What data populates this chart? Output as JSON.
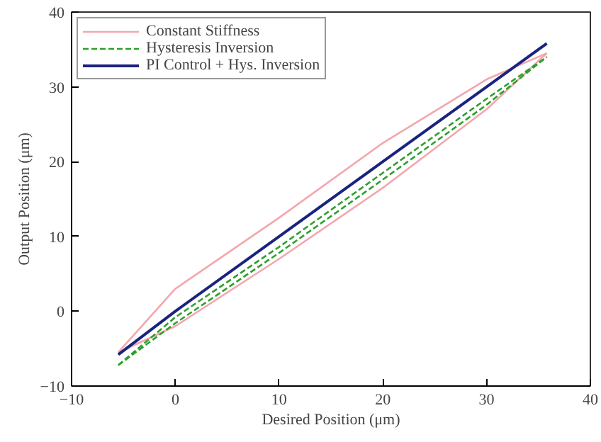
{
  "chart_data": {
    "type": "line",
    "xlabel": "Desired Position (μm)",
    "ylabel": "Output Position (μm)",
    "xlim": [
      -10,
      40
    ],
    "xticks": [
      -10,
      0,
      10,
      20,
      30,
      40
    ],
    "ylim": [
      -10,
      40
    ],
    "yticks": [
      -10,
      0,
      10,
      20,
      30,
      40
    ],
    "grid": false,
    "legend": "top left",
    "series": [
      {
        "name": "Constant Stiffness",
        "color": "#f4a6ae",
        "line_style": "solid",
        "x": [
          -5.5,
          0,
          10,
          20,
          30,
          35.8
        ],
        "values": [
          -5.5,
          -2,
          7,
          16.5,
          27,
          34.5
        ]
      },
      {
        "color": "#f4a6ae",
        "line_style": "solid",
        "x": [
          -5.5,
          0,
          10,
          20,
          30,
          35.8
        ],
        "values": [
          -5.5,
          3,
          12.5,
          22.5,
          31,
          34.5
        ]
      },
      {
        "name": "Hysteresis Inversion",
        "color": "#2ca02c",
        "line_style": "dashed",
        "x": [
          -5.5,
          0,
          10,
          20,
          30,
          35.8
        ],
        "values": [
          -7.2,
          -1.6,
          7.8,
          17.6,
          27.6,
          34
        ]
      },
      {
        "color": "#2ca02c",
        "line_style": "dashed",
        "x": [
          -5.5,
          0,
          10,
          20,
          30,
          35.8
        ],
        "values": [
          -7.2,
          -0.8,
          8.6,
          18.5,
          28.4,
          34
        ]
      },
      {
        "name": "PI Control + Hys. Inversion",
        "color": "#1a237e",
        "line_style": "solid",
        "x": [
          -5.5,
          0,
          10,
          20,
          30,
          35.8
        ],
        "values": [
          -5.8,
          0,
          10,
          20,
          30,
          35.8
        ]
      }
    ]
  }
}
